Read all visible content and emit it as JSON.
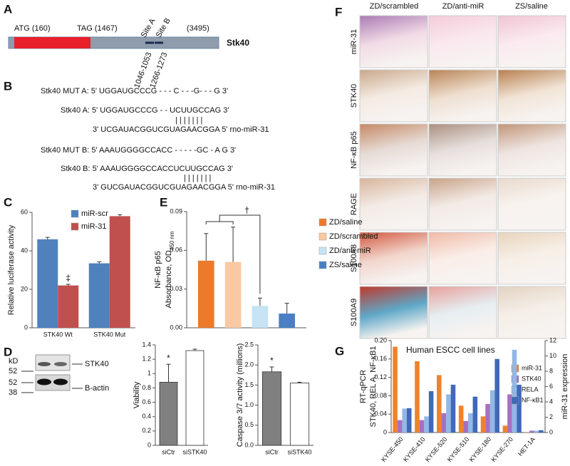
{
  "panel_labels": [
    "A",
    "B",
    "C",
    "D",
    "E",
    "F",
    "G"
  ],
  "gene_map": {
    "start": "ATG (160)",
    "stop": "TAG (1467)",
    "site_a": "Site A",
    "site_b": "Site B",
    "end": "(3495)",
    "gene": "Stk40",
    "range_a": "1046-1053",
    "range_b": "1266-1273"
  },
  "sequence_lines": [
    "Stk40 MUT A: 5' UGGAUGCCCG - - - C - - -G- - - G 3'",
    "Stk40 A: 5' UGGAUGCCCG - - UCUUGCCAG 3'",
    "| | | | | | |",
    "3' UCGAUACGGUCGUAGAACGGA 5'  rno-miR-31",
    "Stk40 MUT B: 5' AAAUGGGGCCACC - - - - -GC - A G 3'",
    "Stk40 B: 5' AAAUGGGGCCACCUCUUGCCAG 3'",
    "| | | | | | |",
    "3' GUCGAUACGGUCGUAGAACGGA 5'  rno-miR-31"
  ],
  "blot": {
    "unit": "kD",
    "markers": [
      "52",
      "52",
      "38"
    ],
    "bands": [
      "STK40",
      "B-actin"
    ]
  },
  "histology": {
    "columns": [
      "ZD/scrambled",
      "ZD/anti-miR",
      "ZS/saline"
    ],
    "rows": [
      "miR-31",
      "STK40",
      "NF-κB p65",
      "RAGE",
      "S100A8",
      "S100A9"
    ]
  },
  "chart_data": [
    {
      "type": "bar",
      "ylabel": "Relative luciferase activity",
      "categories": [
        "STK40 Wt",
        "STK40 Mut"
      ],
      "series": [
        {
          "name": "miR-scr",
          "color": "#4f81bd",
          "values": [
            46,
            33.5
          ],
          "errors": [
            1,
            0.8
          ]
        },
        {
          "name": "miR-31",
          "color": "#c0504d",
          "values": [
            22,
            58
          ],
          "errors": [
            0.6,
            0.8
          ]
        }
      ],
      "ylim": [
        0,
        60
      ],
      "yticks": [
        0,
        20,
        40,
        60
      ],
      "annotation": "‡"
    },
    {
      "type": "bar",
      "ylabel": "Viability",
      "categories": [
        "siCtr",
        "siSTK40"
      ],
      "series": [
        {
          "colors": [
            "#808080",
            "#ffffff"
          ],
          "values": [
            0.88,
            1.32
          ],
          "errors": [
            0.25,
            0.02
          ]
        }
      ],
      "ylim": [
        0,
        1.4
      ],
      "yticks": [
        0,
        0.2,
        0.4,
        0.6,
        0.8,
        1,
        1.2,
        1.4
      ],
      "annotation": "*"
    },
    {
      "type": "bar",
      "ylabel": "Caspase 3/7 activity (millions)",
      "categories": [
        "siCtr",
        "siSTK40"
      ],
      "series": [
        {
          "colors": [
            "#808080",
            "#ffffff"
          ],
          "values": [
            1.83,
            1.55
          ],
          "errors": [
            0.12,
            0.02
          ]
        }
      ],
      "ylim": [
        0,
        2.5
      ],
      "yticks": [
        {
          "value": 0,
          "label": "0.0"
        },
        {
          "value": 0.5,
          "label": "0.5"
        },
        {
          "value": 1,
          "label": "1.0"
        },
        {
          "value": 1.5,
          "label": "1.5"
        },
        {
          "value": 2,
          "label": "2.0"
        },
        {
          "value": 2.5,
          "label": "2.5"
        }
      ],
      "annotation": "*"
    },
    {
      "type": "bar",
      "ylabel": [
        "NF-κB p65",
        "Absorbance, OD"
      ],
      "ylabel_sub": "450 nm",
      "series": [
        {
          "name": "ZD/saline",
          "color": "#ec7a2c",
          "values": [
            0.052
          ],
          "errors": [
            0.021
          ]
        },
        {
          "name": "ZD/scrambled",
          "color": "#f9c9a3",
          "values": [
            0.051
          ],
          "errors": [
            0.027
          ]
        },
        {
          "name": "ZD/anti-miR",
          "color": "#c6e4f3",
          "values": [
            0.017
          ],
          "errors": [
            0.006
          ]
        },
        {
          "name": "ZS/saline",
          "color": "#4a7fc2",
          "values": [
            0.011
          ],
          "errors": [
            0.008
          ]
        }
      ],
      "ylim": [
        0,
        0.09
      ],
      "yticks": [
        {
          "value": 0,
          "label": "0.00"
        },
        {
          "value": 0.03,
          "label": "0.03"
        },
        {
          "value": 0.06,
          "label": "0.06"
        },
        {
          "value": 0.09,
          "label": "0.09"
        }
      ],
      "annotation": "†"
    },
    {
      "type": "bar",
      "title": "Human ESCC cell lines",
      "ylabel": [
        "RT-qPCR",
        "STK40, REL A, NF-κB1"
      ],
      "y2label": "miR-31 expression",
      "categories": [
        "KYSE-450",
        "KYSE-410",
        "KYSE-520",
        "KYSE-510",
        "KYSE-180",
        "KYSE-270",
        "HET-1A"
      ],
      "series": [
        {
          "name": "miR-31",
          "color": "#f0822a",
          "axis": "y2",
          "values": [
            11.2,
            9.3,
            7.5,
            3.5,
            2.1,
            0.9,
            0.05
          ]
        },
        {
          "name": "STK40",
          "color": "#a86fc1",
          "values": [
            0.027,
            0.027,
            0.042,
            0.025,
            0.062,
            0.083,
            0.004
          ]
        },
        {
          "name": "RELA",
          "color": "#92b8e6",
          "values": [
            0.052,
            0.035,
            0.083,
            0.042,
            0.092,
            0.18,
            0.004
          ]
        },
        {
          "name": "NF-κB1",
          "color": "#4169b8",
          "values": [
            0.053,
            0.09,
            0.104,
            0.078,
            0.16,
            0.104,
            0.005
          ]
        }
      ],
      "ylim": [
        0,
        0.2
      ],
      "yticks": [
        {
          "value": 0,
          "label": "0"
        },
        {
          "value": 0.04,
          "label": "0.04"
        },
        {
          "value": 0.08,
          "label": "0.08"
        },
        {
          "value": 0.12,
          "label": "0.12"
        },
        {
          "value": 0.16,
          "label": "0.16"
        },
        {
          "value": 0.2,
          "label": "0.20"
        }
      ],
      "y2lim": [
        0,
        12
      ],
      "y2ticks": [
        0,
        2,
        4,
        6,
        8,
        10,
        12
      ]
    }
  ]
}
